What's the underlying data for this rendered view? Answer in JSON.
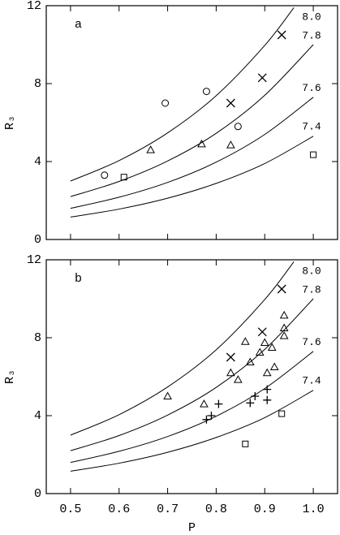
{
  "chart_data": [
    {
      "type": "scatter",
      "label": "a",
      "ylabel": "R₃",
      "xlim": [
        0.45,
        1.05
      ],
      "ylim": [
        0,
        12
      ],
      "xticks": [
        0.5,
        0.6,
        0.7,
        0.8,
        0.9,
        {
          "value": 1,
          "label": "1.0"
        }
      ],
      "yticks": [
        0,
        4,
        8,
        12
      ],
      "show_xtick_labels": false,
      "color": "#000000",
      "curves": [
        {
          "name": "8.0",
          "x": [
            0.5,
            0.6,
            0.7,
            0.8,
            0.9,
            0.96
          ],
          "values": [
            3.0,
            4.05,
            5.47,
            7.38,
            9.96,
            11.9
          ]
        },
        {
          "name": "7.8",
          "x": [
            0.5,
            0.6,
            0.7,
            0.8,
            0.9,
            1.0
          ],
          "values": [
            2.2,
            2.98,
            4.03,
            5.45,
            7.4,
            10.0
          ]
        },
        {
          "name": "7.6",
          "x": [
            0.5,
            0.6,
            0.7,
            0.8,
            0.9,
            1.0
          ],
          "values": [
            1.6,
            2.17,
            2.93,
            3.97,
            5.39,
            7.3
          ]
        },
        {
          "name": "7.4",
          "x": [
            0.5,
            0.6,
            0.7,
            0.8,
            0.9,
            1.0
          ],
          "values": [
            1.15,
            1.56,
            2.12,
            2.88,
            3.9,
            5.3
          ]
        }
      ],
      "series": [
        {
          "marker": "circle",
          "x": [
            0.57,
            0.695,
            0.78,
            0.845
          ],
          "values": [
            3.3,
            7.0,
            7.6,
            5.8
          ]
        },
        {
          "marker": "triangle",
          "x": [
            0.665,
            0.77,
            0.83
          ],
          "values": [
            4.6,
            4.9,
            4.85
          ]
        },
        {
          "marker": "cross",
          "x": [
            0.935,
            0.895,
            0.83
          ],
          "values": [
            10.5,
            8.3,
            7.0
          ]
        },
        {
          "marker": "square",
          "x": [
            0.61,
            1.0
          ],
          "values": [
            3.2,
            4.35
          ]
        }
      ]
    },
    {
      "type": "scatter",
      "label": "b",
      "ylabel": "R₃",
      "xlabel": "P",
      "xlim": [
        0.45,
        1.05
      ],
      "ylim": [
        0,
        12
      ],
      "xticks": [
        0.5,
        0.6,
        0.7,
        0.8,
        0.9,
        {
          "value": 1,
          "label": "1.0"
        }
      ],
      "yticks": [
        0,
        4,
        8,
        12
      ],
      "show_xtick_labels": true,
      "color": "#000000",
      "curves": [
        {
          "name": "8.0",
          "x": [
            0.5,
            0.6,
            0.7,
            0.8,
            0.9,
            0.96
          ],
          "values": [
            3.0,
            4.05,
            5.47,
            7.38,
            9.96,
            11.9
          ]
        },
        {
          "name": "7.8",
          "x": [
            0.5,
            0.6,
            0.7,
            0.8,
            0.9,
            1.0
          ],
          "values": [
            2.2,
            2.98,
            4.03,
            5.45,
            7.4,
            10.0
          ]
        },
        {
          "name": "7.6",
          "x": [
            0.5,
            0.6,
            0.7,
            0.8,
            0.9,
            1.0
          ],
          "values": [
            1.6,
            2.17,
            2.93,
            3.97,
            5.39,
            7.3
          ]
        },
        {
          "name": "7.4",
          "x": [
            0.5,
            0.6,
            0.7,
            0.8,
            0.9,
            1.0
          ],
          "values": [
            1.15,
            1.56,
            2.12,
            2.88,
            3.9,
            5.3
          ]
        }
      ],
      "series": [
        {
          "marker": "cross",
          "x": [
            0.935,
            0.895,
            0.83
          ],
          "values": [
            10.5,
            8.3,
            7.0
          ]
        },
        {
          "marker": "triangle",
          "x": [
            0.7,
            0.775,
            0.86,
            0.83,
            0.845,
            0.87,
            0.89,
            0.9,
            0.915,
            0.94,
            0.94,
            0.94,
            0.92,
            0.905
          ],
          "values": [
            5.0,
            4.6,
            7.8,
            6.2,
            5.85,
            6.75,
            7.25,
            7.75,
            7.5,
            9.15,
            8.5,
            8.1,
            6.5,
            6.2
          ]
        },
        {
          "marker": "plus",
          "x": [
            0.78,
            0.79,
            0.805,
            0.87,
            0.88,
            0.905,
            0.905
          ],
          "values": [
            3.8,
            4.0,
            4.6,
            4.65,
            5.0,
            5.35,
            4.8
          ]
        },
        {
          "marker": "square",
          "x": [
            0.86,
            0.935
          ],
          "values": [
            2.55,
            4.1
          ]
        }
      ]
    }
  ]
}
